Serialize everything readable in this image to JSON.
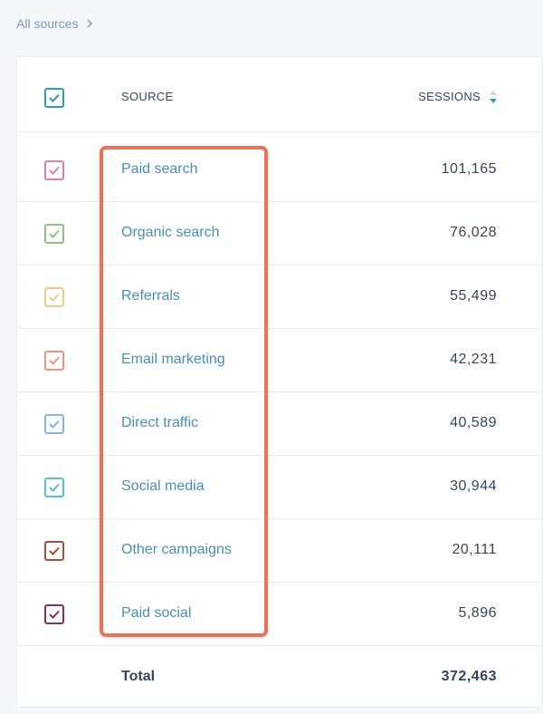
{
  "breadcrumb": {
    "label": "All sources"
  },
  "table": {
    "header_source": "SOURCE",
    "header_sessions": "SESSIONS",
    "header_checkbox_color": "#2e9cb8",
    "rows": [
      {
        "label": "Paid search",
        "value": "101,165",
        "color": "#e0809e"
      },
      {
        "label": "Organic search",
        "value": "76,028",
        "color": "#8fc27f"
      },
      {
        "label": "Referrals",
        "value": "55,499",
        "color": "#f2c88a"
      },
      {
        "label": "Email marketing",
        "value": "42,231",
        "color": "#ef957a"
      },
      {
        "label": "Direct traffic",
        "value": "40,589",
        "color": "#7db8e8"
      },
      {
        "label": "Social media",
        "value": "30,944",
        "color": "#50c4d6"
      },
      {
        "label": "Other campaigns",
        "value": "20,111",
        "color": "#a3503b"
      },
      {
        "label": "Paid social",
        "value": "5,896",
        "color": "#8a2f5a"
      }
    ],
    "total_label": "Total",
    "total_value": "372,463"
  },
  "highlight_color": "#e8735a"
}
